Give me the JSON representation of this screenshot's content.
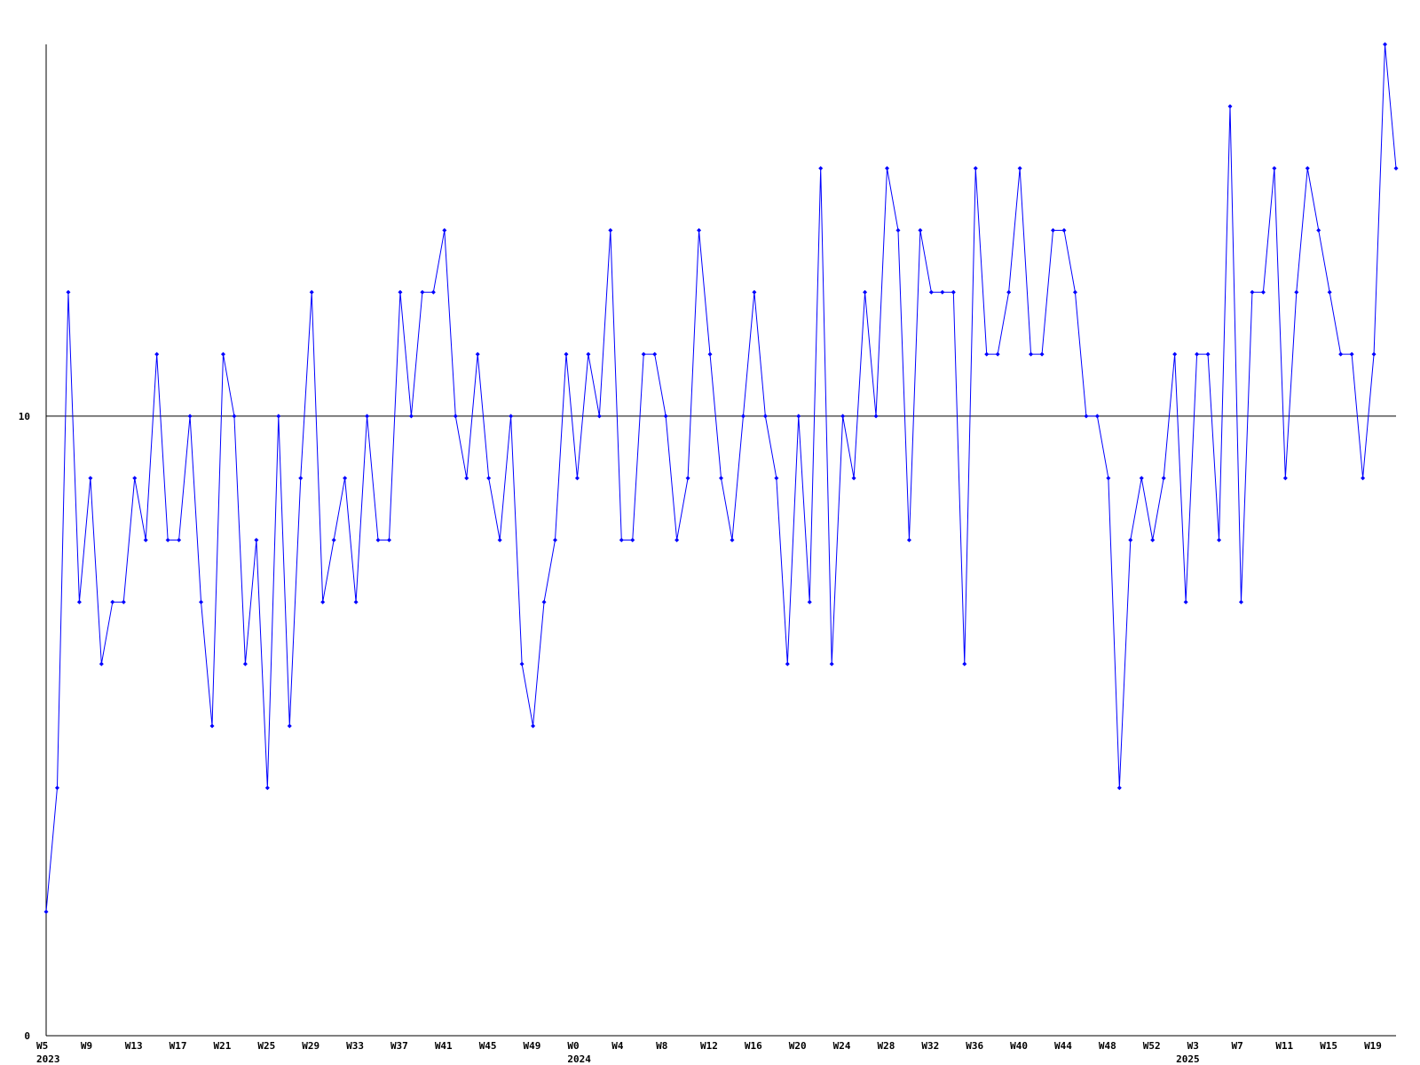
{
  "chart_data": {
    "type": "line",
    "categories": [
      "W5",
      null,
      null,
      null,
      "W9",
      null,
      null,
      null,
      "W13",
      null,
      null,
      null,
      "W17",
      null,
      null,
      null,
      "W21",
      null,
      null,
      null,
      "W25",
      null,
      null,
      null,
      "W29",
      null,
      null,
      null,
      "W33",
      null,
      null,
      null,
      "W37",
      null,
      null,
      null,
      "W41",
      null,
      null,
      null,
      "W45",
      null,
      null,
      null,
      "W49",
      null,
      null,
      null,
      "W0",
      null,
      null,
      null,
      "W4",
      null,
      null,
      null,
      "W8",
      null,
      null,
      null,
      "W12",
      null,
      null,
      null,
      "W16",
      null,
      null,
      null,
      "W20",
      null,
      null,
      null,
      "W24",
      null,
      null,
      null,
      "W28",
      null,
      null,
      null,
      "W32",
      null,
      null,
      null,
      "W36",
      null,
      null,
      null,
      "W40",
      null,
      null,
      null,
      "W44",
      null,
      null,
      null,
      "W48",
      null,
      null,
      null,
      "W52",
      null,
      null,
      null,
      "W3",
      null,
      null,
      null,
      "W7",
      null,
      null,
      null,
      "W11",
      null,
      null,
      null,
      "W15",
      null,
      null,
      null,
      "W19",
      null,
      null
    ],
    "year_labels": [
      "2023",
      null,
      null,
      null,
      null,
      null,
      null,
      null,
      null,
      null,
      null,
      null,
      null,
      null,
      null,
      null,
      null,
      null,
      null,
      null,
      null,
      null,
      null,
      null,
      null,
      null,
      null,
      null,
      null,
      null,
      null,
      null,
      null,
      null,
      null,
      null,
      null,
      null,
      null,
      null,
      null,
      null,
      null,
      null,
      null,
      null,
      null,
      null,
      "2024",
      null,
      null,
      null,
      null,
      null,
      null,
      null,
      null,
      null,
      null,
      null,
      null,
      null,
      null,
      null,
      null,
      null,
      null,
      null,
      null,
      null,
      null,
      null,
      null,
      null,
      null,
      null,
      null,
      null,
      null,
      null,
      null,
      null,
      null,
      null,
      null,
      null,
      null,
      null,
      null,
      null,
      null,
      null,
      null,
      null,
      null,
      null,
      null,
      null,
      null,
      null,
      null,
      null,
      null,
      "2025",
      null,
      null,
      null,
      null,
      null,
      null,
      null,
      null,
      null,
      null,
      null,
      null,
      null,
      null,
      null,
      null,
      null,
      null,
      null,
      null,
      null
    ],
    "series": [
      {
        "color": "#0000ff",
        "values": [
          2,
          4,
          12,
          7,
          9,
          6,
          7,
          7,
          9,
          8,
          11,
          8,
          8,
          10,
          7,
          5,
          11,
          10,
          6,
          8,
          4,
          10,
          5,
          9,
          12,
          7,
          8,
          9,
          7,
          10,
          8,
          8,
          12,
          10,
          12,
          12,
          13,
          10,
          9,
          11,
          9,
          8,
          10,
          6,
          5,
          7,
          8,
          11,
          9,
          11,
          10,
          13,
          8,
          8,
          11,
          11,
          10,
          8,
          9,
          13,
          11,
          9,
          8,
          10,
          12,
          10,
          9,
          6,
          10,
          7,
          14,
          6,
          10,
          9,
          12,
          10,
          14,
          13,
          8,
          13,
          12,
          12,
          12,
          6,
          14,
          11,
          11,
          12,
          14,
          11,
          11,
          13,
          13,
          12,
          10,
          10,
          9,
          4,
          8,
          9,
          8,
          9,
          11,
          7,
          11,
          11,
          8,
          15,
          7,
          12,
          12,
          14,
          9,
          12,
          14,
          13,
          12,
          11,
          11,
          9,
          11,
          16,
          14
        ]
      }
    ],
    "ylim": [
      0,
      16
    ],
    "yticks": [
      0,
      10
    ],
    "grid": true
  }
}
